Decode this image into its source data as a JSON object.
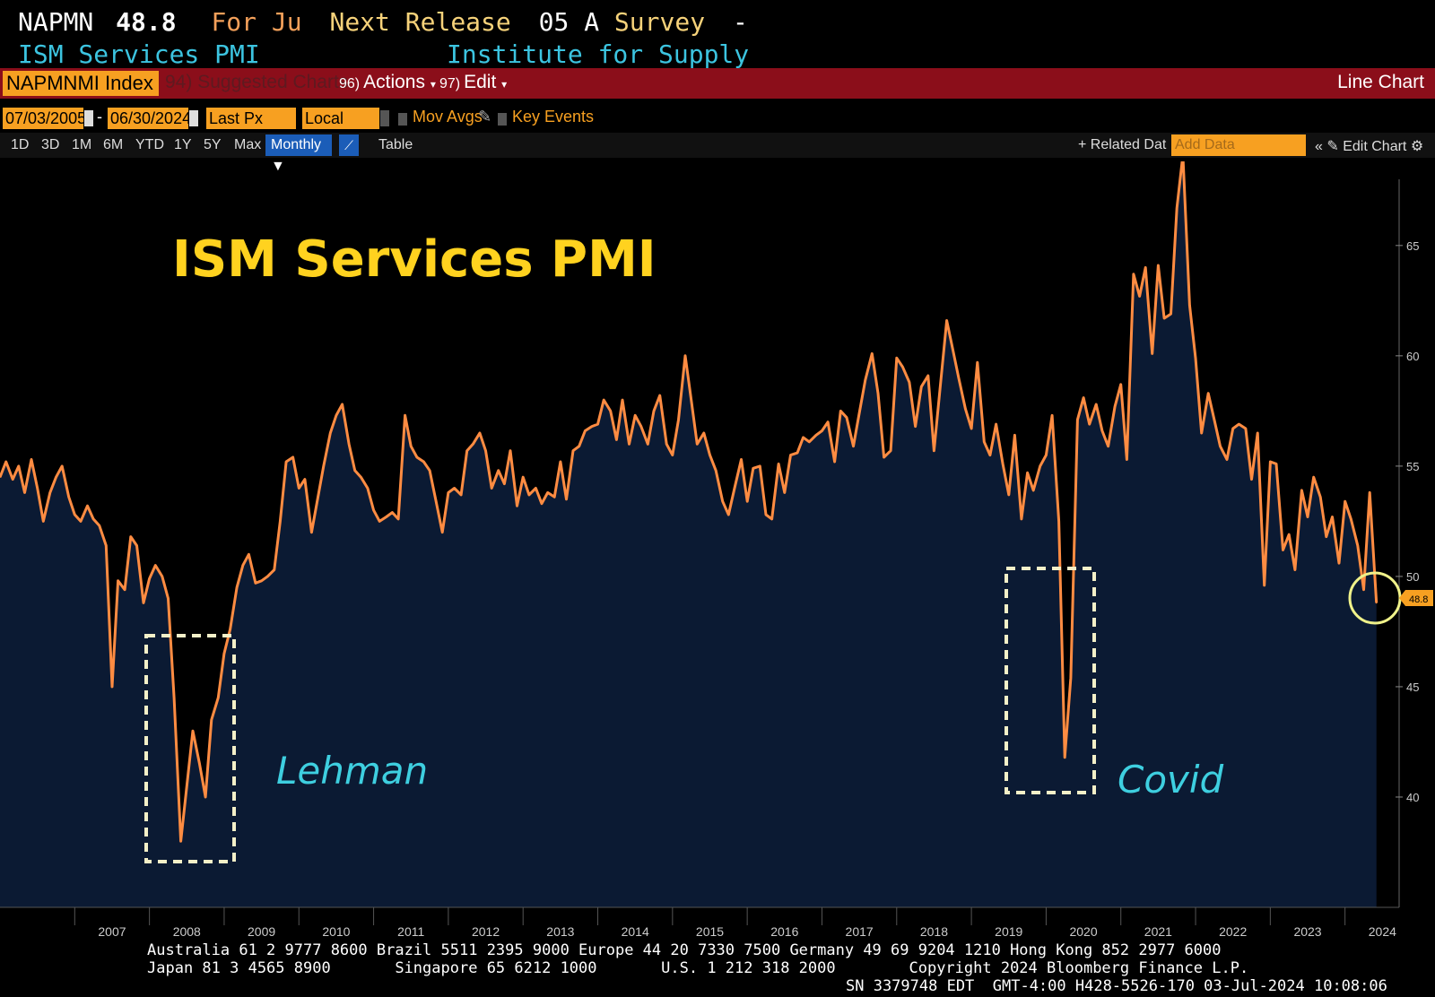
{
  "header": {
    "ticker": "NAPMN",
    "value": "48.8",
    "for_text": "For Ju",
    "next_release": "Next Release",
    "release_date": "05 A",
    "survey": "Survey",
    "dash": "-",
    "series_name": "ISM Services PMI",
    "source": "Institute for Supply"
  },
  "toolbar": {
    "security": "NAPMNMI Index",
    "suggested": "Suggested Charts",
    "suggested_num": "94)",
    "actions_num": "96)",
    "actions": "Actions",
    "edit_num": "97)",
    "edit": "Edit",
    "chart_type": "Line Chart"
  },
  "controls": {
    "start_date": "07/03/2005",
    "end_date": "06/30/2024",
    "date_dash": "-",
    "field": "Last Px",
    "currency": "Local CCY",
    "mov_avgs": "Mov Avgs",
    "key_events": "Key Events",
    "ranges": [
      "1D",
      "3D",
      "1M",
      "6M",
      "YTD",
      "1Y",
      "5Y",
      "Max"
    ],
    "frequency": "Monthly",
    "table": "Table",
    "related_data": "Related Dat",
    "add_data_placeholder": "Add Data",
    "edit_chart": "Edit Chart"
  },
  "colors": {
    "line": "#ff8c42",
    "fill": "#0b1a33",
    "title": "#ffd21f",
    "annotation": "#3ecfe0",
    "toolbar_red": "#8b0e1a",
    "field_orange": "#f7a021",
    "highlight_circle": "#f0f28a"
  },
  "chart_data": {
    "type": "area",
    "title": "ISM Services PMI",
    "x_ticks": [
      "2007",
      "2008",
      "2009",
      "2010",
      "2011",
      "2012",
      "2013",
      "2014",
      "2015",
      "2016",
      "2017",
      "2018",
      "2019",
      "2020",
      "2021",
      "2022",
      "2023",
      "2024"
    ],
    "y_ticks": [
      40,
      45,
      50,
      55,
      60,
      65
    ],
    "ylim": [
      35,
      68
    ],
    "xlim": [
      2006.0,
      2024.4
    ],
    "last_value": "48.8",
    "annotations": [
      "Lehman",
      "Covid"
    ],
    "series": [
      {
        "x": [
          2006.0,
          2006.08,
          2006.17,
          2006.25,
          2006.33,
          2006.42,
          2006.5,
          2006.58,
          2006.67,
          2006.75,
          2006.83,
          2006.92,
          2007.0,
          2007.08,
          2007.17,
          2007.25,
          2007.33,
          2007.42,
          2007.5,
          2007.58,
          2007.67,
          2007.75,
          2007.83,
          2007.92,
          2008.0,
          2008.08,
          2008.17,
          2008.25,
          2008.33,
          2008.42,
          2008.5,
          2008.58,
          2008.67,
          2008.75,
          2008.83,
          2008.92,
          2009.0,
          2009.08,
          2009.17,
          2009.25,
          2009.33,
          2009.42,
          2009.5,
          2009.58,
          2009.67,
          2009.75,
          2009.83,
          2009.92,
          2010.0,
          2010.08,
          2010.17,
          2010.25,
          2010.33,
          2010.42,
          2010.5,
          2010.58,
          2010.67,
          2010.75,
          2010.83,
          2010.92,
          2011.0,
          2011.08,
          2011.17,
          2011.25,
          2011.33,
          2011.42,
          2011.5,
          2011.58,
          2011.67,
          2011.75,
          2011.83,
          2011.92,
          2012.0,
          2012.08,
          2012.17,
          2012.25,
          2012.33,
          2012.42,
          2012.5,
          2012.58,
          2012.67,
          2012.75,
          2012.83,
          2012.92,
          2013.0,
          2013.08,
          2013.17,
          2013.25,
          2013.33,
          2013.42,
          2013.5,
          2013.58,
          2013.67,
          2013.75,
          2013.83,
          2013.92,
          2014.0,
          2014.08,
          2014.17,
          2014.25,
          2014.33,
          2014.42,
          2014.5,
          2014.58,
          2014.67,
          2014.75,
          2014.83,
          2014.92,
          2015.0,
          2015.08,
          2015.17,
          2015.25,
          2015.33,
          2015.42,
          2015.5,
          2015.58,
          2015.67,
          2015.75,
          2015.83,
          2015.92,
          2016.0,
          2016.08,
          2016.17,
          2016.25,
          2016.33,
          2016.42,
          2016.5,
          2016.58,
          2016.67,
          2016.75,
          2016.83,
          2016.92,
          2017.0,
          2017.08,
          2017.17,
          2017.25,
          2017.33,
          2017.42,
          2017.5,
          2017.58,
          2017.67,
          2017.75,
          2017.83,
          2017.92,
          2018.0,
          2018.08,
          2018.17,
          2018.25,
          2018.33,
          2018.42,
          2018.5,
          2018.58,
          2018.67,
          2018.75,
          2018.83,
          2018.92,
          2019.0,
          2019.08,
          2019.17,
          2019.25,
          2019.33,
          2019.42,
          2019.5,
          2019.58,
          2019.67,
          2019.75,
          2019.83,
          2019.92,
          2020.0,
          2020.08,
          2020.17,
          2020.25,
          2020.33,
          2020.42,
          2020.5,
          2020.58,
          2020.67,
          2020.75,
          2020.83,
          2020.92,
          2021.0,
          2021.08,
          2021.17,
          2021.25,
          2021.33,
          2021.42,
          2021.5,
          2021.58,
          2021.67,
          2021.75,
          2021.83,
          2021.92,
          2022.0,
          2022.08,
          2022.17,
          2022.25,
          2022.33,
          2022.42,
          2022.5,
          2022.58,
          2022.67,
          2022.75,
          2022.83,
          2022.92,
          2023.0,
          2023.08,
          2023.17,
          2023.25,
          2023.33,
          2023.42,
          2023.5,
          2023.58,
          2023.67,
          2023.75,
          2023.83,
          2023.92,
          2024.0,
          2024.08,
          2024.17,
          2024.25,
          2024.33,
          2024.42
        ],
        "y": [
          54.5,
          55.2,
          54.4,
          55.0,
          53.8,
          55.3,
          54.0,
          52.5,
          53.8,
          54.5,
          55.0,
          53.6,
          52.8,
          52.5,
          53.2,
          52.6,
          52.3,
          51.4,
          45.0,
          49.8,
          49.4,
          51.8,
          51.4,
          48.8,
          49.9,
          50.5,
          50.0,
          49.0,
          44.5,
          38.0,
          40.5,
          43.0,
          41.5,
          40.0,
          43.5,
          44.5,
          46.5,
          47.6,
          49.5,
          50.5,
          51.0,
          49.7,
          49.8,
          50.0,
          50.3,
          52.5,
          55.2,
          55.4,
          54.0,
          54.4,
          52.0,
          53.5,
          55.0,
          56.5,
          57.3,
          57.8,
          56.0,
          54.8,
          54.5,
          54.0,
          53.0,
          52.5,
          52.7,
          52.9,
          52.6,
          57.3,
          55.9,
          55.4,
          55.2,
          54.8,
          53.5,
          52.0,
          53.8,
          54.0,
          53.7,
          55.7,
          56.0,
          56.5,
          55.7,
          54.0,
          54.8,
          54.2,
          55.7,
          53.2,
          54.5,
          53.7,
          54.0,
          53.3,
          53.8,
          53.6,
          55.2,
          53.5,
          55.7,
          55.9,
          56.6,
          56.8,
          56.9,
          58.0,
          57.5,
          56.2,
          58.0,
          56.0,
          57.3,
          56.8,
          56.0,
          57.5,
          58.2,
          56.0,
          55.5,
          57.1,
          60.0,
          58.0,
          56.0,
          56.5,
          55.5,
          54.8,
          53.4,
          52.8,
          54.0,
          55.3,
          53.4,
          54.9,
          55.0,
          52.8,
          52.6,
          55.1,
          53.8,
          55.5,
          55.6,
          56.3,
          56.1,
          56.4,
          56.6,
          57.0,
          55.2,
          57.5,
          57.2,
          55.9,
          57.4,
          58.9,
          60.1,
          58.3,
          55.4,
          55.7,
          59.9,
          59.5,
          58.8,
          56.8,
          58.6,
          59.1,
          55.7,
          58.5,
          61.6,
          60.3,
          59.0,
          57.6,
          56.7,
          59.7,
          56.1,
          55.5,
          56.9,
          55.1,
          53.7,
          56.4,
          52.6,
          54.7,
          53.9,
          55.0,
          55.5,
          57.3,
          52.5,
          41.8,
          45.4,
          57.1,
          58.1,
          56.9,
          57.8,
          56.6,
          55.9,
          57.7,
          58.7,
          55.3,
          63.7,
          62.7,
          64.0,
          60.1,
          64.1,
          61.7,
          61.9,
          66.7,
          69.1,
          62.3,
          59.9,
          56.5,
          58.3,
          57.1,
          55.9,
          55.3,
          56.7,
          56.9,
          56.7,
          54.4,
          56.5,
          49.6,
          55.2,
          55.1,
          51.2,
          51.9,
          50.3,
          53.9,
          52.7,
          54.5,
          53.6,
          51.8,
          52.7,
          50.6,
          53.4,
          52.6,
          51.4,
          49.4,
          53.8,
          48.8
        ]
      }
    ]
  },
  "footer": {
    "line1": "Australia 61 2 9777 8600 Brazil 5511 2395 9000 Europe 44 20 7330 7500 Germany 49 69 9204 1210 Hong Kong 852 2977 6000",
    "line2": "Japan 81 3 4565 8900       Singapore 65 6212 1000       U.S. 1 212 318 2000        Copyright 2024 Bloomberg Finance L.P.",
    "line3": "SN 3379748 EDT  GMT-4:00 H428-5526-170 03-Jul-2024 10:08:06"
  }
}
